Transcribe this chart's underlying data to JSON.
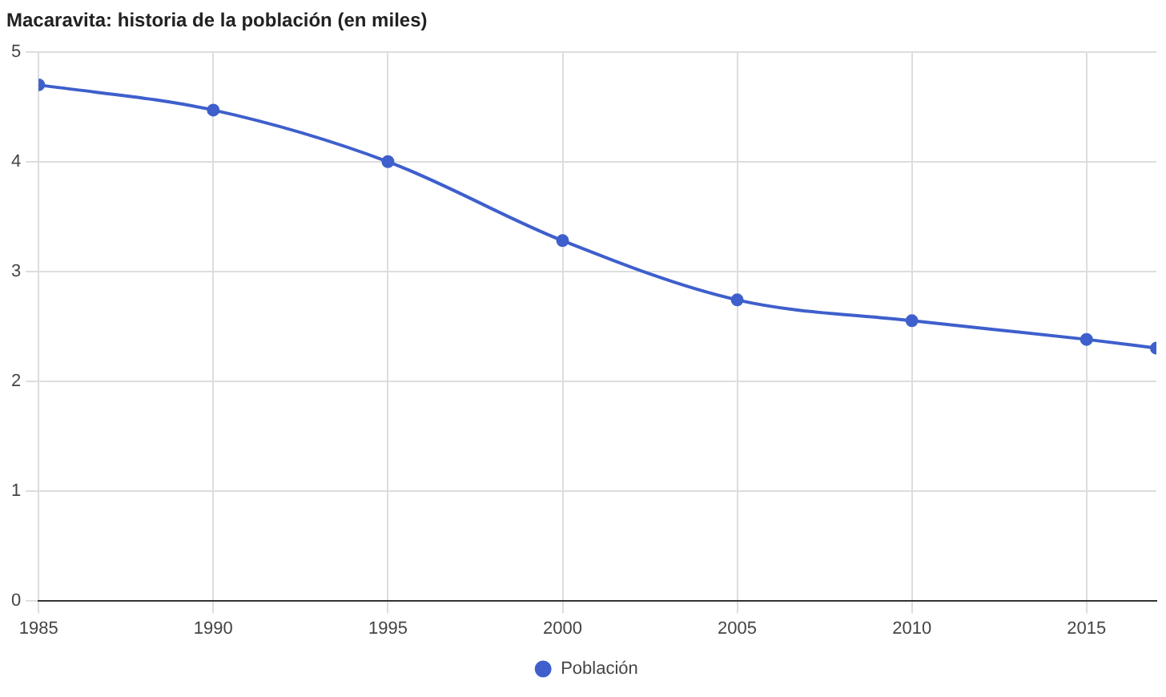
{
  "chart_data": {
    "type": "line",
    "title": "Macaravita: historia de la población (en miles)",
    "x": [
      1985,
      1990,
      1995,
      2000,
      2005,
      2010,
      2015,
      2017
    ],
    "series": [
      {
        "name": "Población",
        "color": "#3e5fcc",
        "values": [
          4.7,
          4.47,
          4.0,
          3.28,
          2.74,
          2.55,
          2.38,
          2.3
        ]
      }
    ],
    "xlim": [
      1985,
      2017
    ],
    "xticks": [
      1985,
      1990,
      1995,
      2000,
      2005,
      2010,
      2015
    ],
    "ylim": [
      0,
      5
    ],
    "yticks": [
      0,
      1,
      2,
      3,
      4,
      5
    ],
    "grid": true,
    "legend": "bottom",
    "marker": "circle",
    "line_style": "solid"
  }
}
